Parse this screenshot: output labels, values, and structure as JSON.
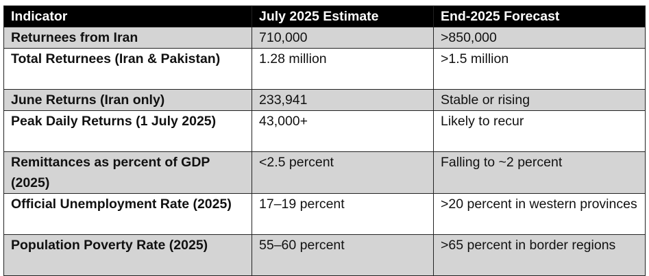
{
  "table": {
    "header": [
      "Indicator",
      "July 2025 Estimate",
      "End-2025 Forecast"
    ],
    "rows": [
      [
        "Returnees from Iran",
        "710,000",
        ">850,000"
      ],
      [
        "Total Returnees (Iran & Pakistan)",
        "1.28 million",
        ">1.5 million"
      ],
      [
        "June Returns (Iran only)",
        "233,941",
        "Stable or rising"
      ],
      [
        "Peak Daily Returns (1 July 2025)",
        "43,000+",
        "Likely to recur"
      ],
      [
        "Remittances as percent of GDP (2025)",
        "<2.5 percent",
        "Falling to ~2 percent"
      ],
      [
        "Official Unemployment Rate (2025)",
        "17–19 percent",
        ">20 percent in western provinces"
      ],
      [
        "Population Poverty Rate (2025)",
        "55–60 percent",
        ">65 percent in border regions"
      ]
    ]
  }
}
